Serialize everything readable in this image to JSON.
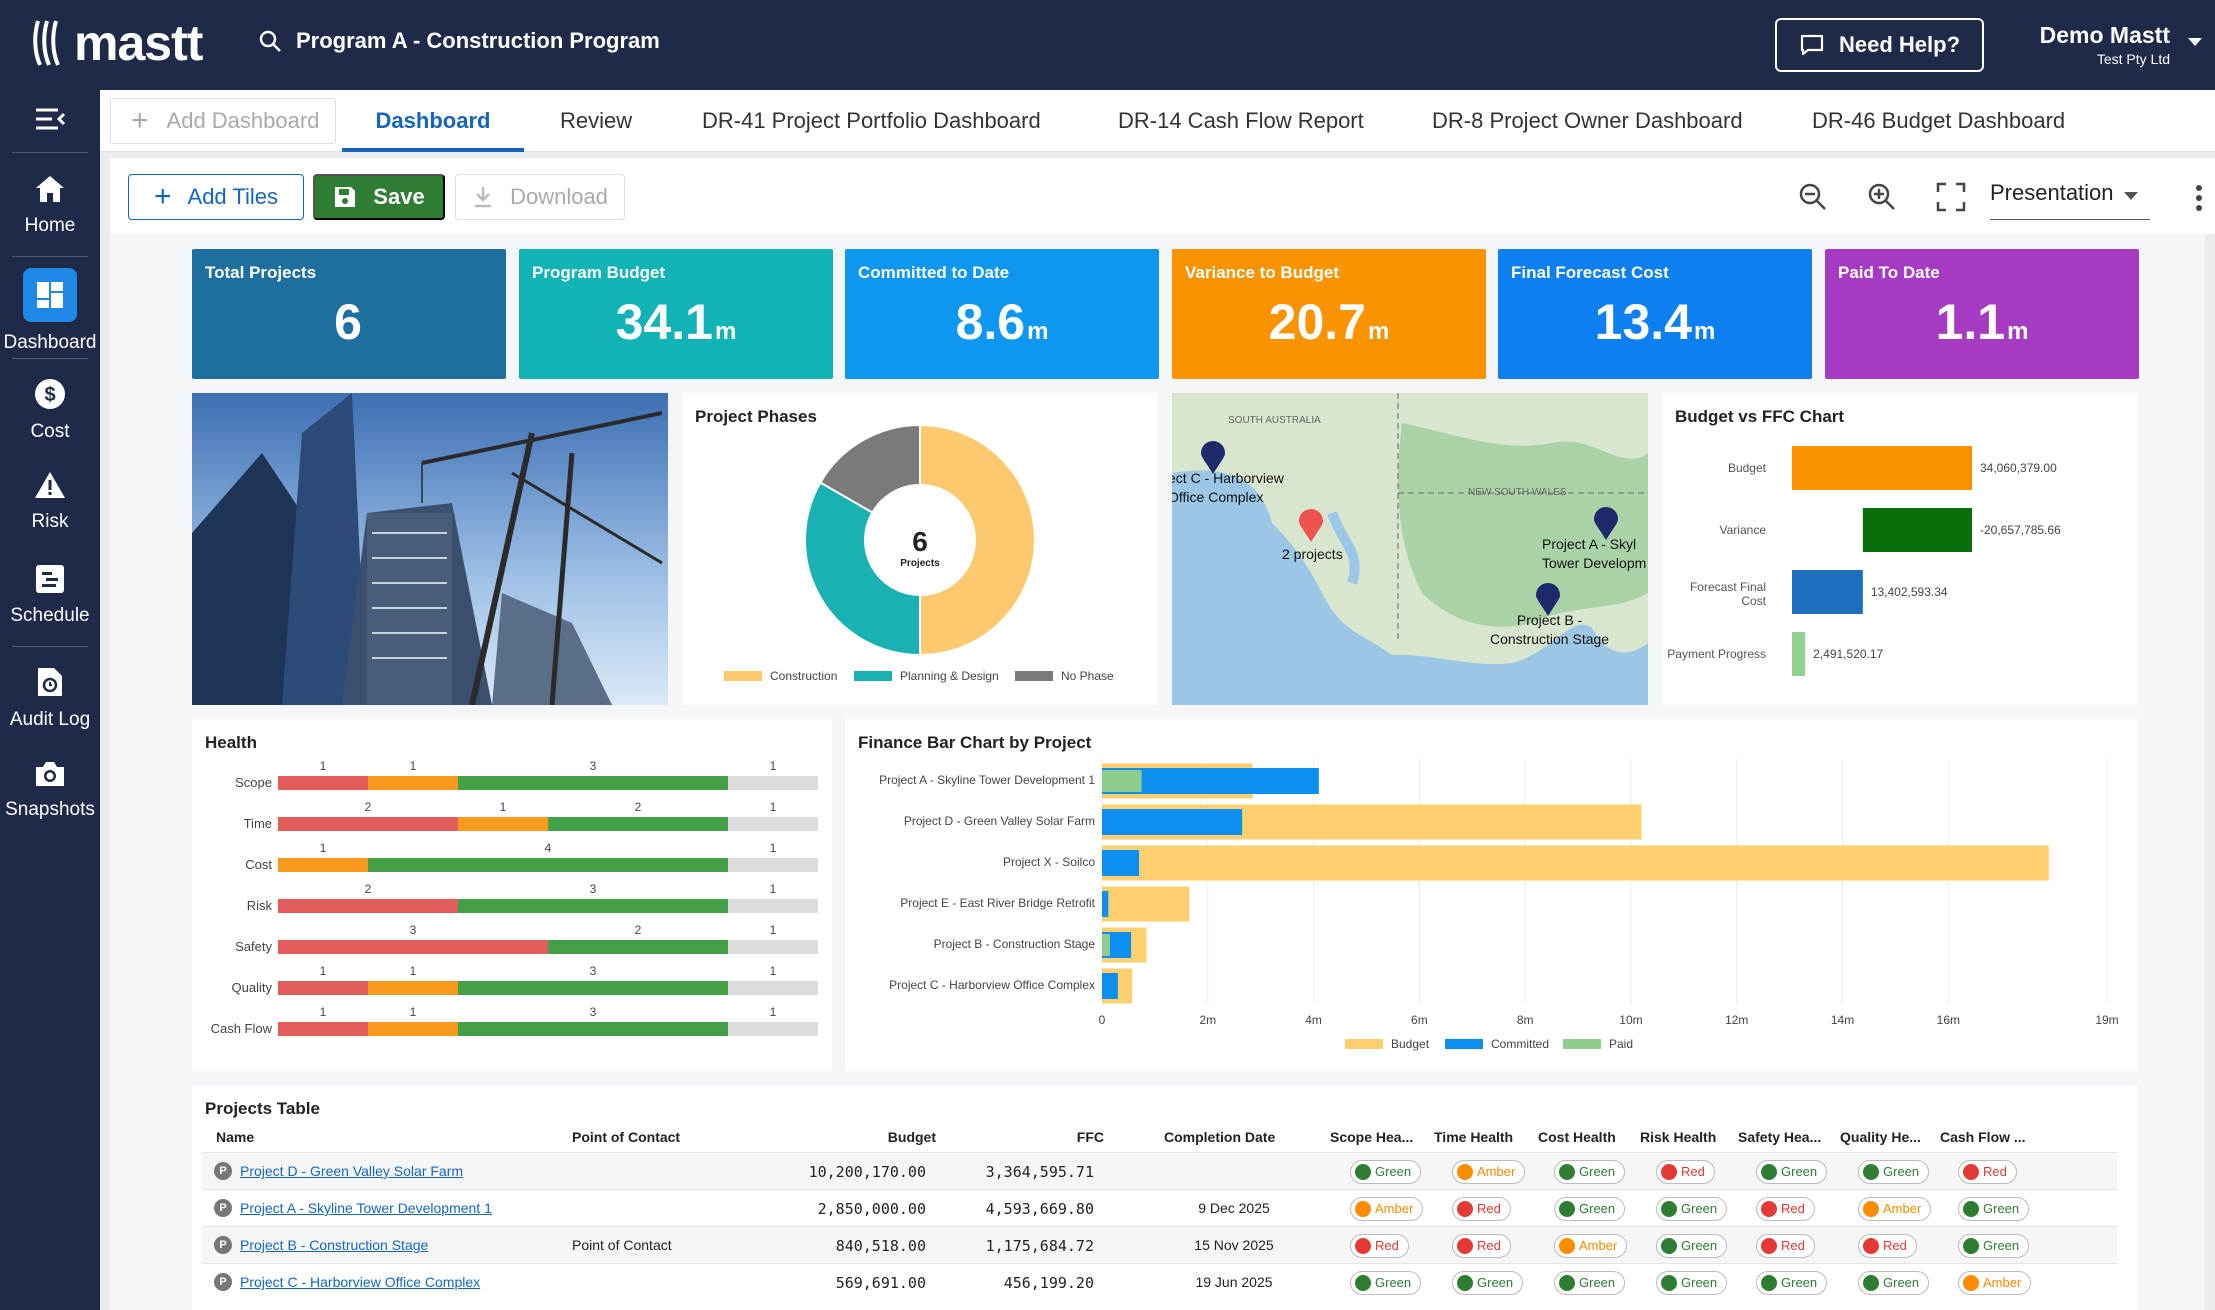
{
  "app": {
    "logo_text": "mastt",
    "program_title": "Program A - Construction Program",
    "help_label": "Need Help?",
    "user_name": "Demo Mastt",
    "user_org": "Test Pty Ltd"
  },
  "sidebar": {
    "items": [
      {
        "label": "Home",
        "icon": "home-icon"
      },
      {
        "label": "Dashboard",
        "icon": "dashboard-icon"
      },
      {
        "label": "Cost",
        "icon": "dollar-icon"
      },
      {
        "label": "Risk",
        "icon": "warning-icon"
      },
      {
        "label": "Schedule",
        "icon": "schedule-icon"
      },
      {
        "label": "Audit Log",
        "icon": "audit-icon"
      },
      {
        "label": "Snapshots",
        "icon": "camera-icon"
      }
    ]
  },
  "tabs": {
    "add_label": "Add Dashboard",
    "items": [
      "Dashboard",
      "Review",
      "DR-41 Project Portfolio Dashboard",
      "DR-14 Cash Flow Report",
      "DR-8 Project Owner Dashboard",
      "DR-46 Budget Dashboard"
    ],
    "active": "Dashboard"
  },
  "toolbar": {
    "add_tiles": "Add Tiles",
    "save": "Save",
    "download": "Download",
    "view_mode": "Presentation"
  },
  "kpis": [
    {
      "title": "Total Projects",
      "value": "6",
      "unit": "",
      "color": "#1f6f9e"
    },
    {
      "title": "Program Budget",
      "value": "34.1",
      "unit": "m",
      "color": "#12b3b5"
    },
    {
      "title": "Committed to Date",
      "value": "8.6",
      "unit": "m",
      "color": "#0d97f0"
    },
    {
      "title": "Variance to Budget",
      "value": "20.7",
      "unit": "m",
      "color": "#f99400"
    },
    {
      "title": "Final Forecast Cost",
      "value": "13.4",
      "unit": "m",
      "color": "#0d7ff0"
    },
    {
      "title": "Paid To Date",
      "value": "1.1",
      "unit": "m",
      "color": "#a53bc3"
    }
  ],
  "project_phases": {
    "title": "Project Phases",
    "center_value": "6",
    "center_label": "Projects",
    "legend": [
      "Construction",
      "Planning & Design",
      "No Phase"
    ],
    "colors": {
      "construction": "#fdc96e",
      "planning": "#1ab1b3",
      "none": "#7a7a7a"
    }
  },
  "map": {
    "region_labels": [
      "SOUTH AUSTRALIA",
      "NEW SOUTH WALES"
    ],
    "markers": [
      {
        "label": "ect C - Harborview\nOffice Complex"
      },
      {
        "label": "2 projects"
      },
      {
        "label": "Project A - Skyl\nTower Developm"
      },
      {
        "label": "Project B -\nConstruction Stage"
      }
    ]
  },
  "budget_ffc": {
    "title": "Budget vs FFC Chart",
    "rows": [
      {
        "label": "Budget",
        "value_text": "34,060,379.00"
      },
      {
        "label": "Variance",
        "value_text": "-20,657,785.66"
      },
      {
        "label": "Forecast Final Cost",
        "value_text": "13,402,593.34"
      },
      {
        "label": "Payment Progress",
        "value_text": "2,491,520.17"
      }
    ]
  },
  "health": {
    "title": "Health"
  },
  "finance_bar": {
    "title": "Finance Bar Chart by Project"
  },
  "projects_table": {
    "title": "Projects Table",
    "headers": [
      "Name",
      "Point of Contact",
      "Budget",
      "FFC",
      "Completion Date",
      "Scope Hea...",
      "Time Health",
      "Cost Health",
      "Risk Health",
      "Safety Hea...",
      "Quality He...",
      "Cash Flow ..."
    ],
    "rows": [
      {
        "badge": "P",
        "name": "Project D - Green Valley Solar Farm",
        "contact": "",
        "budget": "10,200,170.00",
        "ffc": "3,364,595.71",
        "completion": "",
        "health": [
          "Green",
          "Amber",
          "Green",
          "Red",
          "Green",
          "Green",
          "Red"
        ]
      },
      {
        "badge": "P",
        "name": "Project A - Skyline Tower Development 1",
        "contact": "",
        "budget": "2,850,000.00",
        "ffc": "4,593,669.80",
        "completion": "9 Dec 2025",
        "health": [
          "Amber",
          "Red",
          "Green",
          "Green",
          "Red",
          "Amber",
          "Green"
        ]
      },
      {
        "badge": "P",
        "name": "Project B - Construction Stage",
        "contact": "Point of Contact",
        "budget": "840,518.00",
        "ffc": "1,175,684.72",
        "completion": "15 Nov 2025",
        "health": [
          "Red",
          "Red",
          "Amber",
          "Green",
          "Red",
          "Red",
          "Green"
        ]
      },
      {
        "badge": "P",
        "name": "Project C - Harborview Office Complex",
        "contact": "",
        "budget": "569,691.00",
        "ffc": "456,199.20",
        "completion": "19 Jun 2025",
        "health": [
          "Green",
          "Green",
          "Green",
          "Green",
          "Green",
          "Green",
          "Amber"
        ]
      }
    ]
  },
  "chart_data": [
    {
      "type": "pie",
      "title": "Project Phases",
      "categories": [
        "Construction",
        "Planning & Design",
        "No Phase"
      ],
      "values": [
        3,
        2,
        1
      ]
    },
    {
      "type": "bar",
      "title": "Budget vs FFC Chart",
      "categories": [
        "Budget",
        "Variance",
        "Forecast Final Cost",
        "Payment Progress"
      ],
      "values": [
        34060379.0,
        -20657785.66,
        13402593.34,
        2491520.17
      ],
      "colors": [
        "#f99400",
        "#0a6e0a",
        "#1f6fc0",
        "#8fd18f"
      ]
    },
    {
      "type": "bar",
      "title": "Health",
      "categories": [
        "Scope",
        "Time",
        "Cost",
        "Risk",
        "Safety",
        "Quality",
        "Cash Flow"
      ],
      "series": [
        {
          "name": "Red",
          "values": [
            1,
            2,
            0,
            2,
            3,
            1,
            1
          ]
        },
        {
          "name": "Amber",
          "values": [
            1,
            1,
            1,
            0,
            0,
            1,
            1
          ]
        },
        {
          "name": "Green",
          "values": [
            3,
            2,
            4,
            3,
            2,
            3,
            3
          ]
        },
        {
          "name": "None",
          "values": [
            1,
            1,
            1,
            1,
            1,
            1,
            1
          ]
        }
      ],
      "colors": {
        "Red": "#e35d5b",
        "Amber": "#f99a1c",
        "Green": "#43a047",
        "None": "#dcdcdc"
      }
    },
    {
      "type": "bar",
      "title": "Finance Bar Chart by Project",
      "categories": [
        "Project A - Skyline Tower Development 1",
        "Project D - Green Valley Solar Farm",
        "Project X - Soilco",
        "Project E - East River Bridge Retrofit",
        "Project B - Construction Stage",
        "Project C - Harborview Office Complex"
      ],
      "series": [
        {
          "name": "Budget",
          "values": [
            2.85,
            10.2,
            17.9,
            1.65,
            0.84,
            0.57
          ]
        },
        {
          "name": "Committed",
          "values": [
            4.1,
            2.65,
            0.7,
            0.12,
            0.55,
            0.3
          ]
        },
        {
          "name": "Paid",
          "values": [
            0.75,
            0.0,
            0.0,
            0.0,
            0.15,
            0.0
          ]
        }
      ],
      "colors": {
        "Budget": "#fdcf6e",
        "Committed": "#0d8ff0",
        "Paid": "#8fcc8f"
      },
      "xlim": [
        0,
        19
      ],
      "xticks": [
        "0",
        "2m",
        "4m",
        "6m",
        "8m",
        "10m",
        "12m",
        "14m",
        "16m",
        "19m"
      ]
    }
  ]
}
